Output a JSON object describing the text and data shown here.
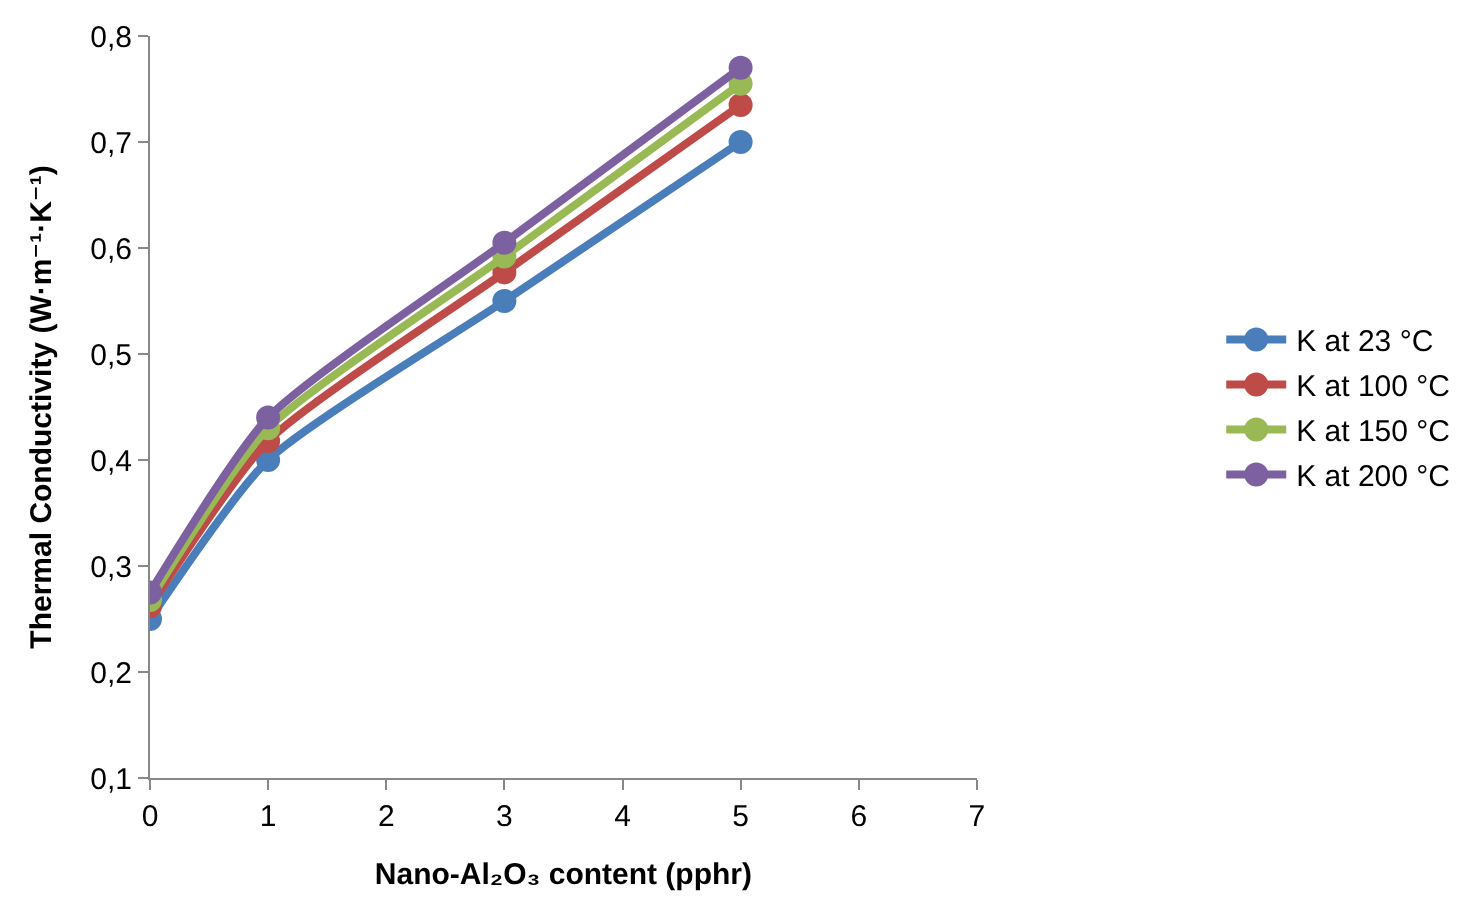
{
  "chart_data": {
    "type": "line",
    "xlabel": "Nano-Al₂O₃ content (pphr)",
    "ylabel": "Thermal Conductivity (W·m⁻¹·K⁻¹)",
    "x": [
      0,
      1,
      3,
      5
    ],
    "series": [
      {
        "name": "K at 23 °C",
        "color": "#4a7ebb",
        "values": [
          0.25,
          0.4,
          0.55,
          0.7
        ]
      },
      {
        "name": "K at 100 °C",
        "color": "#be4b48",
        "values": [
          0.262,
          0.418,
          0.577,
          0.735
        ]
      },
      {
        "name": "K at 150 °C",
        "color": "#98b954",
        "values": [
          0.268,
          0.43,
          0.592,
          0.755
        ]
      },
      {
        "name": "K at 200 °C",
        "color": "#7d60a0",
        "values": [
          0.275,
          0.44,
          0.605,
          0.77
        ]
      }
    ],
    "xlim": [
      0,
      7
    ],
    "xticks": [
      0,
      1,
      2,
      3,
      4,
      5,
      6,
      7
    ],
    "ylim": [
      0.1,
      0.8
    ],
    "yticks": [
      {
        "value": 0.1,
        "label": "0,1"
      },
      {
        "value": 0.2,
        "label": "0,2"
      },
      {
        "value": 0.3,
        "label": "0,3"
      },
      {
        "value": 0.4,
        "label": "0,4"
      },
      {
        "value": 0.5,
        "label": "0,5"
      },
      {
        "value": 0.6,
        "label": "0,6"
      },
      {
        "value": 0.7,
        "label": "0,7"
      },
      {
        "value": 0.8,
        "label": "0,8"
      }
    ],
    "legend": "right",
    "marker": "circle",
    "line_style": "solid"
  }
}
